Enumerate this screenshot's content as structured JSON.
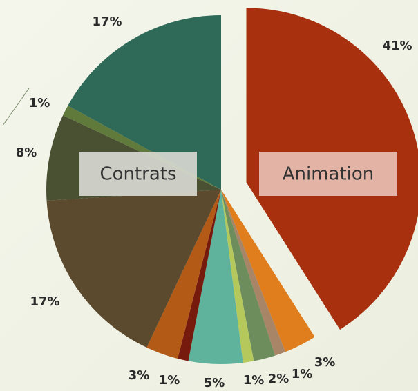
{
  "chart_data": {
    "type": "pie",
    "values": [
      41,
      3,
      1,
      2,
      1,
      5,
      1,
      3,
      17,
      8,
      1,
      17
    ],
    "value_labels": [
      "41%",
      "3%",
      "1%",
      "2%",
      "1%",
      "5%",
      "1%",
      "3%",
      "17%",
      "8%",
      "1%",
      "17%"
    ],
    "colors": [
      "#a8300f",
      "#e07d1c",
      "#a88566",
      "#6e8d5c",
      "#b4c85c",
      "#5fb39c",
      "#761a0d",
      "#b25a16",
      "#5c4a2e",
      "#4a5132",
      "#5f7a3a",
      "#2f6a59"
    ],
    "exploded": 0,
    "annotations": [
      "Contrats",
      "Animation"
    ]
  }
}
